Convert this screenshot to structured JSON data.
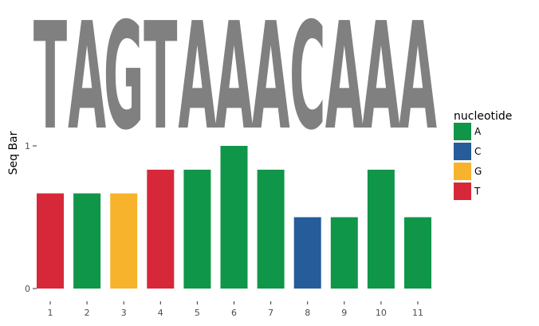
{
  "chart_data": {
    "type": "bar",
    "ylabel": "Seq Bar",
    "ylim": [
      0,
      1
    ],
    "y_ticks": [
      "0",
      "1"
    ],
    "x": [
      "1",
      "2",
      "3",
      "4",
      "5",
      "6",
      "7",
      "8",
      "9",
      "10",
      "11"
    ],
    "values": [
      0.667,
      0.667,
      0.667,
      0.833,
      0.833,
      1.0,
      0.833,
      0.5,
      0.5,
      0.833,
      0.5
    ],
    "nucleotides": [
      "T",
      "A",
      "G",
      "T",
      "A",
      "A",
      "A",
      "C",
      "A",
      "A",
      "A"
    ],
    "logo_sequence": [
      "T",
      "A",
      "G",
      "T",
      "A",
      "A",
      "A",
      "C",
      "A",
      "A",
      "A"
    ],
    "logo_color": "#808080",
    "grid": false,
    "legend": {
      "title": "nucleotide",
      "placement": "right",
      "entries": [
        {
          "label": "A",
          "color": "#109648"
        },
        {
          "label": "C",
          "color": "#255C99"
        },
        {
          "label": "G",
          "color": "#F7B32B"
        },
        {
          "label": "T",
          "color": "#D62839"
        }
      ]
    }
  }
}
